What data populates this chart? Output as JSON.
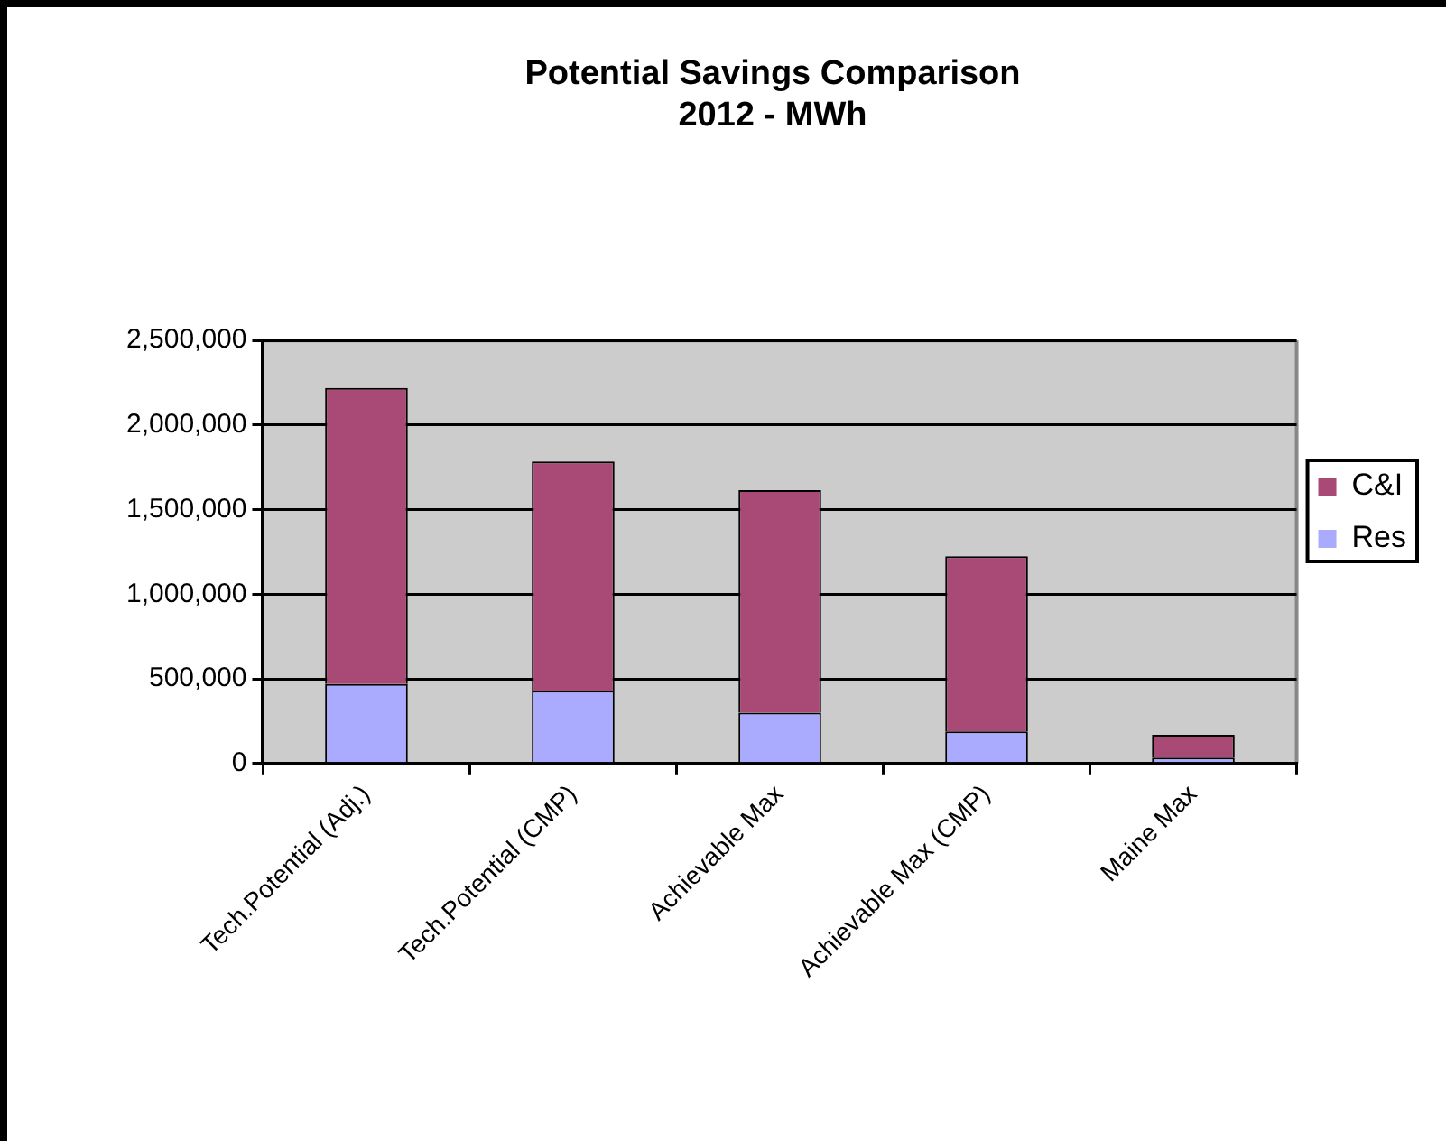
{
  "chart_data": {
    "type": "bar",
    "title": "Potential Savings Comparison\n2012 - MWh",
    "categories": [
      "Tech.Potential (Adj.)",
      "Tech.Potential (CMP)",
      "Achievable Max",
      "Achievable Max (CMP)",
      "Maine Max"
    ],
    "series": [
      {
        "name": "Res",
        "color": "#aaaaff",
        "values": [
          470000,
          430000,
          300000,
          190000,
          35000
        ]
      },
      {
        "name": "C&I",
        "color": "#a94a76",
        "values": [
          1750000,
          1355000,
          1315000,
          1035000,
          135000
        ]
      }
    ],
    "stacked": true,
    "ylim": [
      0,
      2500000
    ],
    "yticks": [
      0,
      {
        "value": 500000,
        "label": "500,000"
      },
      {
        "value": 1000000,
        "label": "1,000,000"
      },
      {
        "value": 1500000,
        "label": "1,500,000"
      },
      {
        "value": 2000000,
        "label": "2,000,000"
      },
      {
        "value": 2500000,
        "label": "2,500,000"
      }
    ],
    "grid": "y",
    "legend": "right"
  }
}
